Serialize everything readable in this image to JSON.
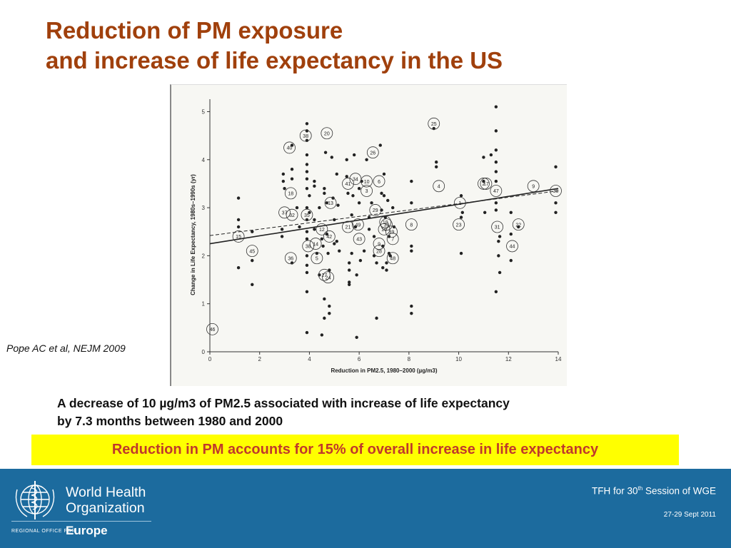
{
  "slide": {
    "title_line1": "Reduction of PM exposure",
    "title_line2": "and increase of life expectancy in the US",
    "citation": "Pope AC et al, NEJM 2009",
    "finding_line1": "A decrease of 10 µg/m3 of PM2.5  associated with increase of life expectancy",
    "finding_line2": "by 7.3 months between 1980 and 2000",
    "highlight": "Reduction in PM accounts for 15% of overall increase in life expectancy"
  },
  "footer": {
    "org_line1": "World Health",
    "org_line2": "Organization",
    "regional_office": "REGIONAL OFFICE FOR",
    "region": "Europe",
    "event_prefix": "TFH for 30",
    "event_sup": "th",
    "event_suffix": " Session of WGE",
    "dates": "27-29 Sept 2011",
    "colors": {
      "footer_bg": "#1c6b9e",
      "title": "#a0400c",
      "highlight_bg": "#ffff00",
      "highlight_text": "#c0392b"
    }
  },
  "chart_data": {
    "type": "scatter",
    "xlabel": "Reduction in PM2.5, 1980–2000 (µg/m3)",
    "ylabel": "Change in Life Expectancy, 1980s–1990s (yr)",
    "xlim": [
      0,
      14
    ],
    "ylim": [
      0,
      5.2
    ],
    "xticks": [
      0,
      2,
      4,
      6,
      8,
      10,
      12,
      14
    ],
    "yticks": [
      0,
      1,
      2,
      3,
      4,
      5
    ],
    "grid": false,
    "fit_lines": [
      {
        "style": "solid",
        "x": [
          0,
          14
        ],
        "y": [
          2.25,
          3.4
        ]
      },
      {
        "style": "dashed",
        "x": [
          0,
          14
        ],
        "y": [
          2.42,
          3.35
        ]
      }
    ],
    "labeled_points": [
      {
        "label": "46",
        "x": 0.1,
        "y": 0.47
      },
      {
        "label": "15",
        "x": 1.15,
        "y": 2.4
      },
      {
        "label": "45",
        "x": 1.7,
        "y": 2.1
      },
      {
        "label": "40",
        "x": 3.2,
        "y": 4.25
      },
      {
        "label": "38",
        "x": 3.85,
        "y": 4.5
      },
      {
        "label": "20",
        "x": 4.7,
        "y": 4.55
      },
      {
        "label": "18",
        "x": 3.25,
        "y": 3.3
      },
      {
        "label": "37",
        "x": 3.0,
        "y": 2.9
      },
      {
        "label": "32",
        "x": 3.3,
        "y": 2.85
      },
      {
        "label": "35",
        "x": 3.9,
        "y": 2.85
      },
      {
        "label": "36",
        "x": 3.25,
        "y": 1.95
      },
      {
        "label": "38",
        "x": 3.95,
        "y": 2.2
      },
      {
        "label": "14",
        "x": 4.25,
        "y": 2.25
      },
      {
        "label": "5",
        "x": 4.3,
        "y": 1.95
      },
      {
        "label": "12",
        "x": 4.5,
        "y": 2.55
      },
      {
        "label": "42",
        "x": 4.8,
        "y": 2.4
      },
      {
        "label": "27",
        "x": 4.6,
        "y": 1.6
      },
      {
        "label": "24",
        "x": 4.75,
        "y": 1.55
      },
      {
        "label": "13",
        "x": 4.85,
        "y": 3.1
      },
      {
        "label": "41",
        "x": 5.55,
        "y": 3.5
      },
      {
        "label": "34",
        "x": 5.85,
        "y": 3.6
      },
      {
        "label": "26",
        "x": 6.55,
        "y": 4.15
      },
      {
        "label": "10",
        "x": 6.3,
        "y": 3.55
      },
      {
        "label": "3",
        "x": 6.3,
        "y": 3.35
      },
      {
        "label": "6",
        "x": 6.8,
        "y": 3.55
      },
      {
        "label": "21",
        "x": 5.55,
        "y": 2.6
      },
      {
        "label": "49",
        "x": 5.95,
        "y": 2.65
      },
      {
        "label": "43",
        "x": 6.0,
        "y": 2.35
      },
      {
        "label": "29",
        "x": 6.65,
        "y": 2.95
      },
      {
        "label": "19",
        "x": 7.05,
        "y": 2.7
      },
      {
        "label": "16",
        "x": 7.0,
        "y": 2.55
      },
      {
        "label": "33",
        "x": 7.1,
        "y": 2.65
      },
      {
        "label": "39",
        "x": 7.3,
        "y": 2.5
      },
      {
        "label": "7",
        "x": 7.35,
        "y": 2.35
      },
      {
        "label": "9",
        "x": 6.8,
        "y": 2.25
      },
      {
        "label": "28",
        "x": 6.8,
        "y": 2.1
      },
      {
        "label": "48",
        "x": 7.35,
        "y": 1.95
      },
      {
        "label": "8",
        "x": 8.1,
        "y": 2.65
      },
      {
        "label": "25",
        "x": 9.0,
        "y": 4.75
      },
      {
        "label": "4",
        "x": 9.2,
        "y": 3.45
      },
      {
        "label": "1",
        "x": 10.05,
        "y": 3.1
      },
      {
        "label": "23",
        "x": 10.0,
        "y": 2.65
      },
      {
        "label": "2",
        "x": 11.0,
        "y": 3.5
      },
      {
        "label": "47",
        "x": 11.5,
        "y": 3.35
      },
      {
        "label": "17",
        "x": 11.1,
        "y": 3.5
      },
      {
        "label": "31",
        "x": 11.55,
        "y": 2.6
      },
      {
        "label": "22",
        "x": 12.4,
        "y": 2.65
      },
      {
        "label": "44",
        "x": 12.15,
        "y": 2.2
      },
      {
        "label": "9",
        "x": 13.0,
        "y": 3.45
      },
      {
        "label": "30",
        "x": 13.9,
        "y": 3.35
      }
    ],
    "unlabeled_points": [
      {
        "x": 1.15,
        "y": 3.2
      },
      {
        "x": 1.15,
        "y": 2.75
      },
      {
        "x": 1.15,
        "y": 2.6
      },
      {
        "x": 1.15,
        "y": 1.75
      },
      {
        "x": 1.7,
        "y": 2.5
      },
      {
        "x": 1.7,
        "y": 1.9
      },
      {
        "x": 1.7,
        "y": 1.4
      },
      {
        "x": 2.9,
        "y": 2.55
      },
      {
        "x": 2.9,
        "y": 2.4
      },
      {
        "x": 2.95,
        "y": 3.7
      },
      {
        "x": 2.95,
        "y": 3.55
      },
      {
        "x": 3.0,
        "y": 3.4
      },
      {
        "x": 3.3,
        "y": 4.3
      },
      {
        "x": 3.3,
        "y": 3.8
      },
      {
        "x": 3.3,
        "y": 3.6
      },
      {
        "x": 3.3,
        "y": 1.85
      },
      {
        "x": 3.5,
        "y": 3.0
      },
      {
        "x": 3.6,
        "y": 2.6
      },
      {
        "x": 3.9,
        "y": 4.75
      },
      {
        "x": 3.9,
        "y": 4.6
      },
      {
        "x": 3.9,
        "y": 4.4
      },
      {
        "x": 3.9,
        "y": 4.1
      },
      {
        "x": 3.9,
        "y": 3.9
      },
      {
        "x": 3.9,
        "y": 3.75
      },
      {
        "x": 3.9,
        "y": 3.6
      },
      {
        "x": 3.9,
        "y": 3.4
      },
      {
        "x": 3.9,
        "y": 3.0
      },
      {
        "x": 3.9,
        "y": 2.75
      },
      {
        "x": 3.9,
        "y": 2.5
      },
      {
        "x": 3.9,
        "y": 2.35
      },
      {
        "x": 3.9,
        "y": 2.0
      },
      {
        "x": 3.9,
        "y": 1.8
      },
      {
        "x": 3.9,
        "y": 1.65
      },
      {
        "x": 3.9,
        "y": 1.25
      },
      {
        "x": 3.9,
        "y": 0.4
      },
      {
        "x": 4.0,
        "y": 3.25
      },
      {
        "x": 4.0,
        "y": 2.9
      },
      {
        "x": 4.2,
        "y": 3.55
      },
      {
        "x": 4.2,
        "y": 3.45
      },
      {
        "x": 4.2,
        "y": 2.75
      },
      {
        "x": 4.2,
        "y": 2.55
      },
      {
        "x": 4.3,
        "y": 2.05
      },
      {
        "x": 4.4,
        "y": 3.0
      },
      {
        "x": 4.4,
        "y": 1.6
      },
      {
        "x": 4.5,
        "y": 0.35
      },
      {
        "x": 4.5,
        "y": 2.35
      },
      {
        "x": 4.55,
        "y": 2.2
      },
      {
        "x": 4.6,
        "y": 3.4
      },
      {
        "x": 4.6,
        "y": 3.3
      },
      {
        "x": 4.6,
        "y": 1.1
      },
      {
        "x": 4.6,
        "y": 0.7
      },
      {
        "x": 4.65,
        "y": 4.15
      },
      {
        "x": 4.7,
        "y": 3.1
      },
      {
        "x": 4.7,
        "y": 2.45
      },
      {
        "x": 4.75,
        "y": 2.05
      },
      {
        "x": 4.8,
        "y": 1.7
      },
      {
        "x": 4.8,
        "y": 0.95
      },
      {
        "x": 4.8,
        "y": 0.8
      },
      {
        "x": 4.9,
        "y": 4.05
      },
      {
        "x": 4.95,
        "y": 3.2
      },
      {
        "x": 5.0,
        "y": 2.75
      },
      {
        "x": 5.0,
        "y": 2.25
      },
      {
        "x": 5.1,
        "y": 3.7
      },
      {
        "x": 5.1,
        "y": 2.3
      },
      {
        "x": 5.15,
        "y": 3.05
      },
      {
        "x": 5.2,
        "y": 2.1
      },
      {
        "x": 5.5,
        "y": 4.0
      },
      {
        "x": 5.5,
        "y": 3.65
      },
      {
        "x": 5.55,
        "y": 3.3
      },
      {
        "x": 5.6,
        "y": 1.85
      },
      {
        "x": 5.6,
        "y": 1.7
      },
      {
        "x": 5.6,
        "y": 1.45
      },
      {
        "x": 5.6,
        "y": 1.4
      },
      {
        "x": 5.7,
        "y": 2.85
      },
      {
        "x": 5.7,
        "y": 2.05
      },
      {
        "x": 5.75,
        "y": 3.25
      },
      {
        "x": 5.8,
        "y": 4.1
      },
      {
        "x": 5.85,
        "y": 2.6
      },
      {
        "x": 5.9,
        "y": 0.3
      },
      {
        "x": 5.9,
        "y": 1.6
      },
      {
        "x": 6.0,
        "y": 3.4
      },
      {
        "x": 6.0,
        "y": 3.1
      },
      {
        "x": 6.05,
        "y": 1.9
      },
      {
        "x": 6.1,
        "y": 3.55
      },
      {
        "x": 6.2,
        "y": 2.1
      },
      {
        "x": 6.3,
        "y": 4.0
      },
      {
        "x": 6.4,
        "y": 2.8
      },
      {
        "x": 6.4,
        "y": 2.55
      },
      {
        "x": 6.5,
        "y": 3.1
      },
      {
        "x": 6.6,
        "y": 2.4
      },
      {
        "x": 6.6,
        "y": 2.0
      },
      {
        "x": 6.7,
        "y": 1.85
      },
      {
        "x": 6.7,
        "y": 0.7
      },
      {
        "x": 6.85,
        "y": 4.3
      },
      {
        "x": 6.9,
        "y": 3.3
      },
      {
        "x": 6.9,
        "y": 2.95
      },
      {
        "x": 6.95,
        "y": 2.2
      },
      {
        "x": 6.95,
        "y": 1.75
      },
      {
        "x": 7.0,
        "y": 3.7
      },
      {
        "x": 7.0,
        "y": 3.25
      },
      {
        "x": 7.05,
        "y": 2.8
      },
      {
        "x": 7.1,
        "y": 1.85
      },
      {
        "x": 7.15,
        "y": 3.15
      },
      {
        "x": 7.2,
        "y": 2.4
      },
      {
        "x": 7.2,
        "y": 2.05
      },
      {
        "x": 7.25,
        "y": 2.0
      },
      {
        "x": 7.1,
        "y": 1.7
      },
      {
        "x": 7.35,
        "y": 3.0
      },
      {
        "x": 7.4,
        "y": 2.6
      },
      {
        "x": 8.1,
        "y": 3.55
      },
      {
        "x": 8.1,
        "y": 3.1
      },
      {
        "x": 8.1,
        "y": 2.2
      },
      {
        "x": 8.1,
        "y": 2.1
      },
      {
        "x": 8.1,
        "y": 0.95
      },
      {
        "x": 8.1,
        "y": 0.8
      },
      {
        "x": 9.0,
        "y": 4.65
      },
      {
        "x": 9.1,
        "y": 3.95
      },
      {
        "x": 9.1,
        "y": 3.85
      },
      {
        "x": 10.1,
        "y": 3.25
      },
      {
        "x": 10.1,
        "y": 2.8
      },
      {
        "x": 10.1,
        "y": 2.05
      },
      {
        "x": 10.15,
        "y": 2.9
      },
      {
        "x": 11.0,
        "y": 4.05
      },
      {
        "x": 11.0,
        "y": 3.55
      },
      {
        "x": 11.05,
        "y": 2.9
      },
      {
        "x": 11.3,
        "y": 4.1
      },
      {
        "x": 11.5,
        "y": 5.1
      },
      {
        "x": 11.5,
        "y": 4.6
      },
      {
        "x": 11.5,
        "y": 4.2
      },
      {
        "x": 11.5,
        "y": 3.95
      },
      {
        "x": 11.5,
        "y": 3.75
      },
      {
        "x": 11.5,
        "y": 3.55
      },
      {
        "x": 11.5,
        "y": 3.1
      },
      {
        "x": 11.5,
        "y": 2.95
      },
      {
        "x": 11.5,
        "y": 1.25
      },
      {
        "x": 11.6,
        "y": 2.3
      },
      {
        "x": 11.6,
        "y": 2.0
      },
      {
        "x": 11.65,
        "y": 2.4
      },
      {
        "x": 11.65,
        "y": 1.65
      },
      {
        "x": 12.1,
        "y": 2.9
      },
      {
        "x": 12.1,
        "y": 2.45
      },
      {
        "x": 12.1,
        "y": 1.9
      },
      {
        "x": 12.4,
        "y": 2.6
      },
      {
        "x": 13.9,
        "y": 3.85
      },
      {
        "x": 13.9,
        "y": 3.1
      },
      {
        "x": 13.9,
        "y": 2.9
      }
    ]
  }
}
